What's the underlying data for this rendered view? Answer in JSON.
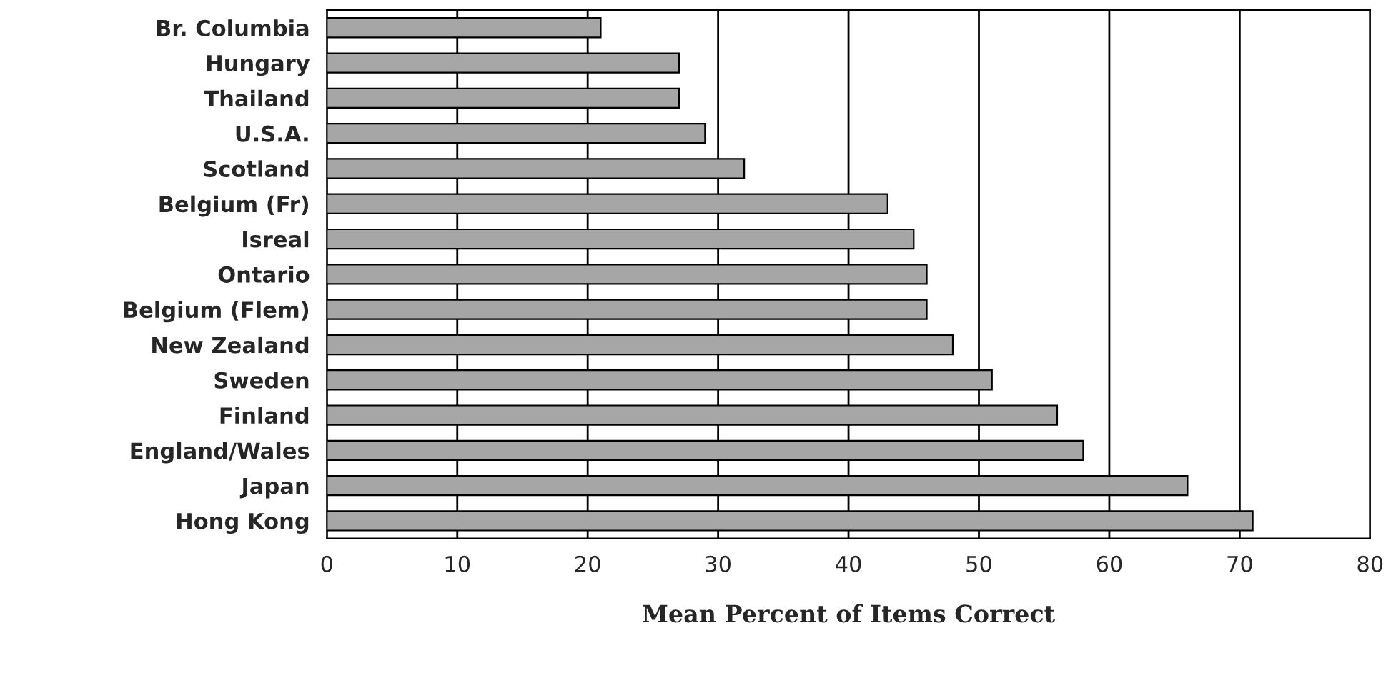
{
  "chart_data": {
    "type": "bar",
    "orientation": "horizontal",
    "xlabel": "Mean Percent of Items Correct",
    "categories": [
      "Br. Columbia",
      "Hungary",
      "Thailand",
      "U.S.A.",
      "Scotland",
      "Belgium (Fr)",
      "Isreal",
      "Ontario",
      "Belgium (Flem)",
      "New Zealand",
      "Sweden",
      "Finland",
      "England/Wales",
      "Japan",
      "Hong Kong"
    ],
    "values": [
      21,
      27,
      27,
      29,
      32,
      43,
      45,
      46,
      46,
      48,
      51,
      56,
      58,
      66,
      71
    ],
    "color": "#a6a6a6",
    "xlim": [
      0,
      80
    ],
    "xticks": [
      0,
      10,
      20,
      30,
      40,
      50,
      60,
      70,
      80
    ],
    "grid": "x",
    "legend": false
  }
}
